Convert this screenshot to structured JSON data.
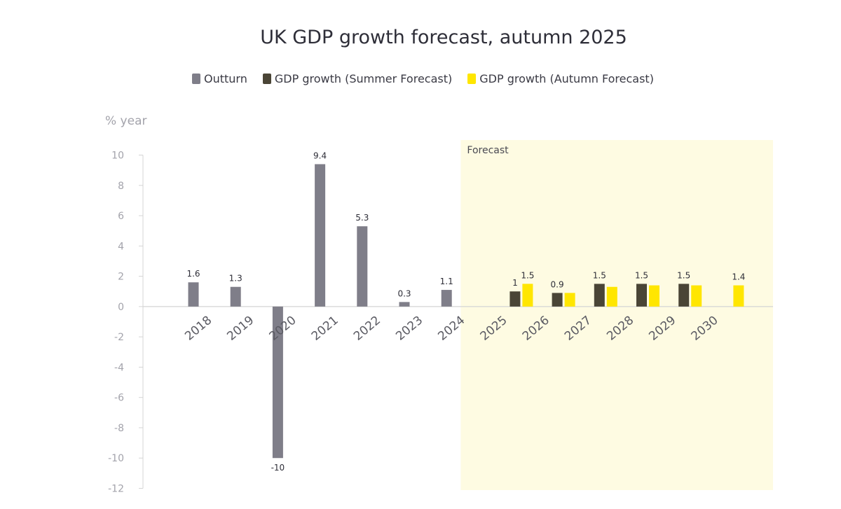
{
  "chart_data": {
    "type": "bar",
    "title": "UK GDP growth forecast, autumn 2025",
    "ylabel": "% year",
    "xlabel": "",
    "ylim": [
      -12,
      10
    ],
    "yticks": [
      10,
      8,
      6,
      4,
      2,
      0,
      -2,
      -4,
      -6,
      -8,
      -10,
      -12
    ],
    "categories": [
      "2018",
      "2019",
      "2020",
      "2021",
      "2022",
      "2023",
      "2024",
      "2025",
      "2026",
      "2027",
      "2028",
      "2029",
      "2030"
    ],
    "forecast_label": "Forecast",
    "forecast_start": "2025",
    "series": [
      {
        "name": "Outturn",
        "color": "#7f7e89",
        "values": [
          1.6,
          1.3,
          -10,
          9.4,
          5.3,
          0.3,
          1.1,
          null,
          null,
          null,
          null,
          null,
          null
        ],
        "labels": [
          "1.6",
          "1.3",
          "-10",
          "9.4",
          "5.3",
          "0.3",
          "1.1",
          null,
          null,
          null,
          null,
          null,
          null
        ]
      },
      {
        "name": "GDP growth (Summer Forecast)",
        "color": "#4a4536",
        "values": [
          null,
          null,
          null,
          null,
          null,
          null,
          null,
          1.0,
          0.9,
          1.5,
          1.5,
          1.5,
          null
        ],
        "labels": [
          null,
          null,
          null,
          null,
          null,
          null,
          null,
          "1",
          "0.9",
          "1.5",
          "1.5",
          "1.5",
          null
        ]
      },
      {
        "name": "GDP growth (Autumn Forecast)",
        "color": "#ffe600",
        "values": [
          null,
          null,
          null,
          null,
          null,
          null,
          null,
          1.5,
          0.9,
          1.3,
          1.4,
          1.4,
          1.4
        ],
        "labels": [
          null,
          null,
          null,
          null,
          null,
          null,
          null,
          "1.5",
          null,
          null,
          null,
          null,
          "1.4"
        ]
      }
    ],
    "colors": {
      "forecast_shade": "#fefbe2",
      "axis": "#d4d4d4",
      "tick_text": "#a3a3ab",
      "label_text": "#2e2e38"
    }
  }
}
